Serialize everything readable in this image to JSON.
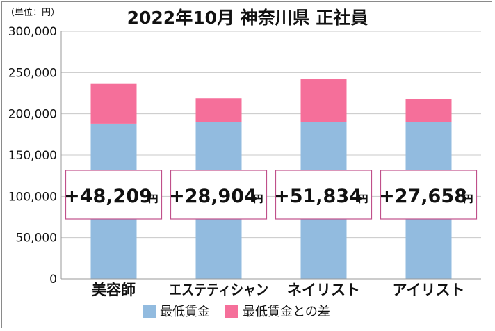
{
  "chart_data": {
    "type": "bar",
    "stacked": true,
    "title": "2022年10月 神奈川県 正社員",
    "unit_label": "（単位：円）",
    "categories": [
      "美容師",
      "エステティシャン",
      "ネイリスト",
      "アイリスト"
    ],
    "series": [
      {
        "name": "最低賃金",
        "color": "#92bbdf",
        "values": [
          188000,
          190000,
          190000,
          190000
        ]
      },
      {
        "name": "最低賃金との差",
        "color": "#f56f9a",
        "values": [
          48209,
          28904,
          51834,
          27658
        ]
      }
    ],
    "annotations": [
      {
        "number": "+48,209",
        "unit": "円"
      },
      {
        "number": "+28,904",
        "unit": "円"
      },
      {
        "number": "+51,834",
        "unit": "円"
      },
      {
        "number": "+27,658",
        "unit": "円"
      }
    ],
    "ylim": [
      0,
      300000
    ],
    "yticks": [
      0,
      50000,
      100000,
      150000,
      200000,
      250000,
      300000
    ],
    "ytick_labels": [
      "0",
      "50,000",
      "100,000",
      "150,000",
      "200,000",
      "250,000",
      "300,000"
    ],
    "grid": true,
    "legend_position": "bottom"
  }
}
